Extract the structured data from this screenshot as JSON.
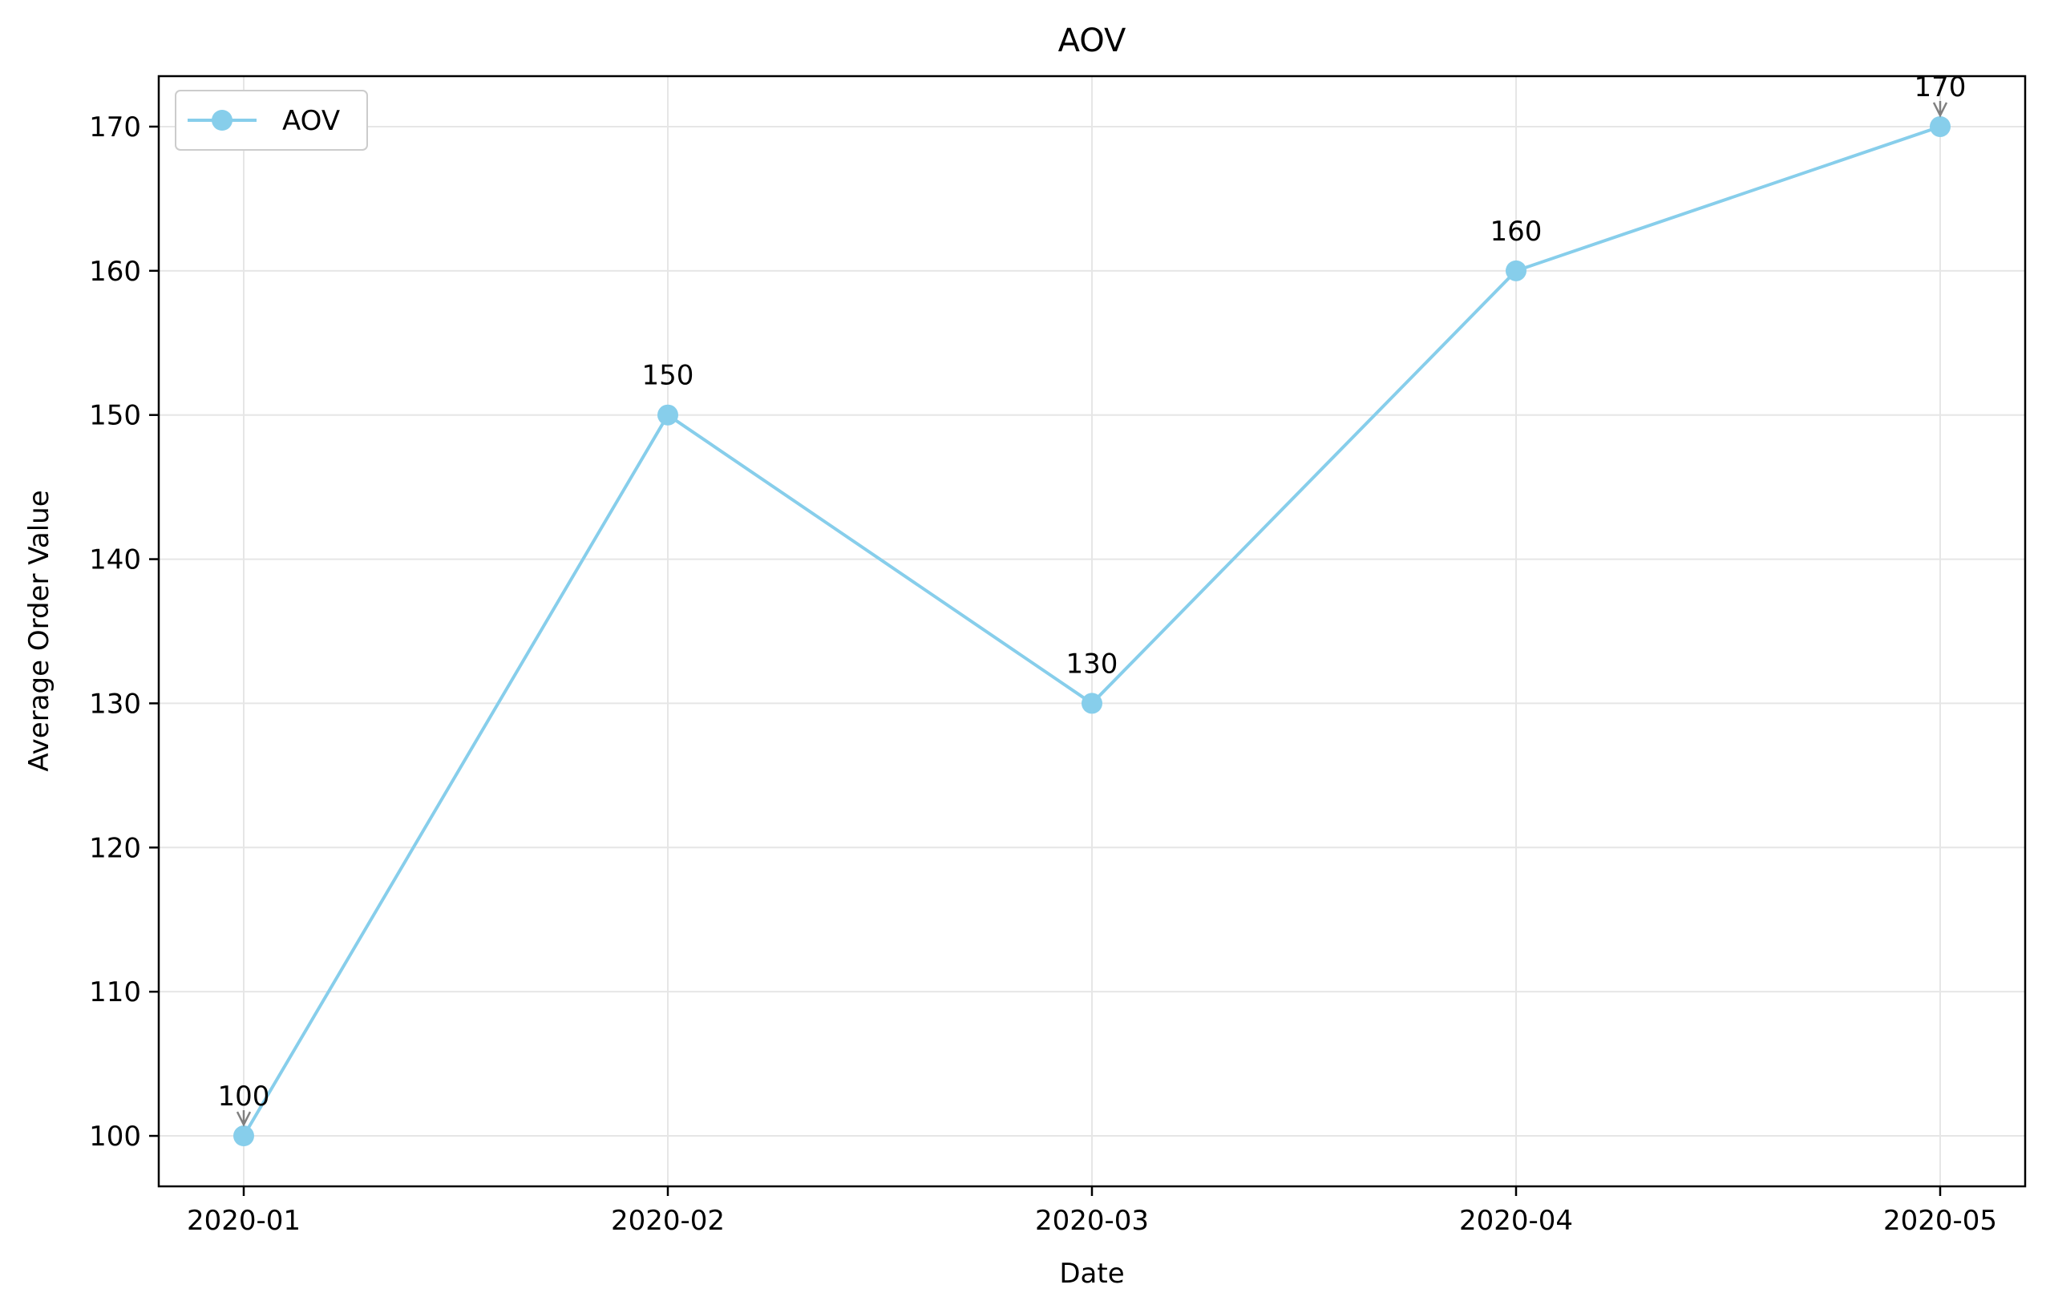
{
  "chart_data": {
    "type": "line",
    "title": "AOV",
    "xlabel": "Date",
    "ylabel": "Average Order Value",
    "categories": [
      "2020-01",
      "2020-02",
      "2020-03",
      "2020-04",
      "2020-05"
    ],
    "series": [
      {
        "name": "AOV",
        "values": [
          100,
          150,
          130,
          160,
          170
        ],
        "color": "#87CEEB"
      }
    ],
    "data_labels": [
      "100",
      "150",
      "130",
      "160",
      "170"
    ],
    "ylim": [
      96.5,
      173.5
    ],
    "yticks": [
      100,
      110,
      120,
      130,
      140,
      150,
      160,
      170
    ],
    "ytick_labels": [
      "100",
      "110",
      "120",
      "130",
      "140",
      "150",
      "160",
      "170"
    ],
    "grid": true,
    "legend": {
      "position": "top-left",
      "label": "AOV"
    },
    "colors": {
      "line": "#87CEEB",
      "grid": "#e6e6e6",
      "axes": "#000000",
      "arrow": "#808080"
    }
  }
}
